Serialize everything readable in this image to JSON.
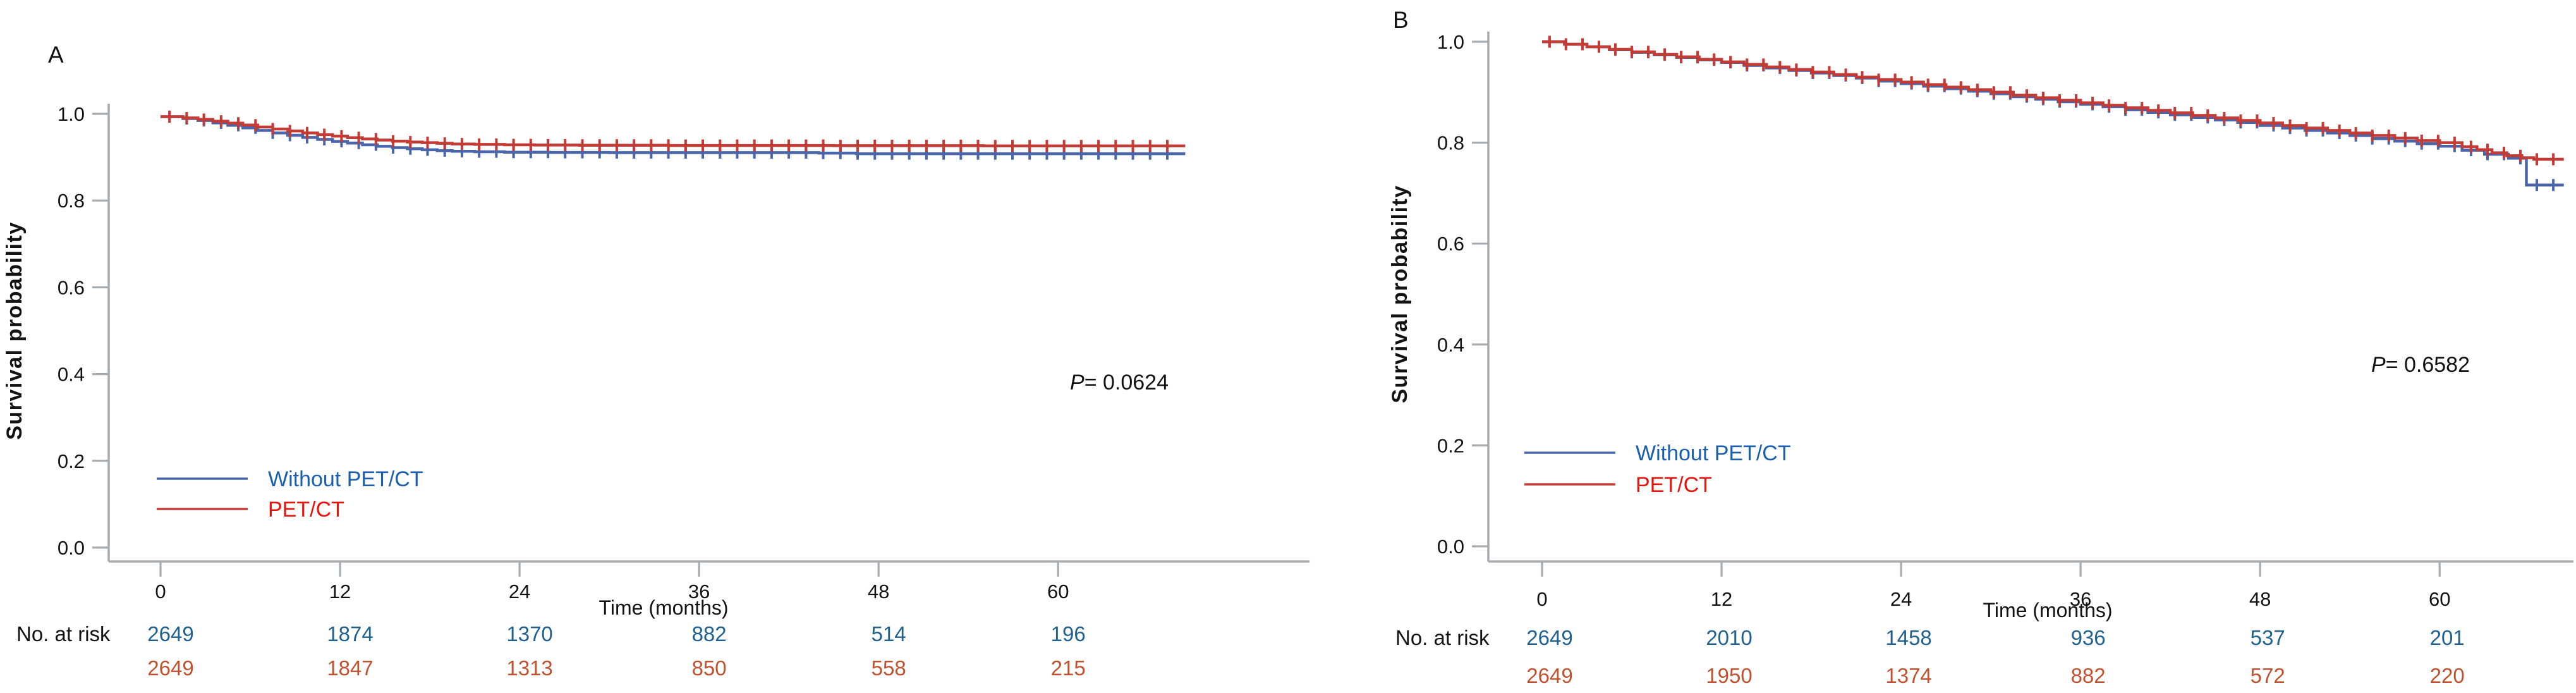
{
  "figure": {
    "background": "#ffffff",
    "axis_color": "#a6acb0",
    "tick_label_color": "#121212",
    "risk_header_color": "#121212"
  },
  "chart_data": [
    {
      "type": "line",
      "subtype": "kaplan-meier-step",
      "panel": "A",
      "title": "A",
      "xlabel": "Time (months)",
      "ylabel": "Survival probability",
      "xlim": [
        0,
        70
      ],
      "ylim": [
        0.0,
        1.0
      ],
      "xticks": [
        0,
        12,
        24,
        36,
        48,
        60
      ],
      "yticks": [
        1.0,
        0.8,
        0.6,
        0.4,
        0.2,
        0.0
      ],
      "ytick_labels": [
        "1.0",
        "0.8",
        "0.6",
        "0.4",
        "0.2",
        "0.0"
      ],
      "grid": false,
      "legend_position": "bottom-left",
      "pvalue": {
        "symbol": "P",
        "rest": "= 0.0624"
      },
      "risk_label": "No. at risk",
      "censor_interval": 1.15,
      "censor_start": 0.6,
      "series": [
        {
          "name": "Without PET/CT",
          "color": "#4a66aa",
          "label_color": "#1a5fae",
          "risk_color": "#20618f",
          "risk_counts": [
            "2649",
            "1874",
            "1370",
            "882",
            "514",
            "196"
          ],
          "points": [
            [
              0,
              0.9935
            ],
            [
              1.5,
              0.989
            ],
            [
              2.5,
              0.9845
            ],
            [
              3.5,
              0.979
            ],
            [
              4.5,
              0.9735
            ],
            [
              5.5,
              0.9675
            ],
            [
              6.5,
              0.9615
            ],
            [
              7.5,
              0.956
            ],
            [
              8.5,
              0.9505
            ],
            [
              9.5,
              0.9455
            ],
            [
              10.5,
              0.941
            ],
            [
              11.5,
              0.9365
            ],
            [
              12.5,
              0.9325
            ],
            [
              13.5,
              0.9285
            ],
            [
              14.5,
              0.925
            ],
            [
              15.5,
              0.922
            ],
            [
              16.5,
              0.9195
            ],
            [
              17.5,
              0.917
            ],
            [
              18.5,
              0.915
            ],
            [
              19.5,
              0.9135
            ],
            [
              21,
              0.9125
            ],
            [
              23,
              0.9115
            ],
            [
              26,
              0.911
            ],
            [
              30,
              0.9105
            ],
            [
              44,
              0.9095
            ],
            [
              46.5,
              0.908
            ],
            [
              68.5,
              0.908
            ]
          ]
        },
        {
          "name": "PET/CT",
          "color": "#c23b35",
          "label_color": "#e8130c",
          "risk_color": "#c2512e",
          "risk_counts": [
            "2649",
            "1847",
            "1313",
            "850",
            "558",
            "215"
          ],
          "points": [
            [
              0,
              0.9935
            ],
            [
              1.5,
              0.9905
            ],
            [
              2.5,
              0.987
            ],
            [
              3.5,
              0.983
            ],
            [
              4.5,
              0.9785
            ],
            [
              5.5,
              0.974
            ],
            [
              6.5,
              0.9695
            ],
            [
              7.5,
              0.965
            ],
            [
              8.5,
              0.9605
            ],
            [
              9.5,
              0.956
            ],
            [
              10.5,
              0.952
            ],
            [
              11.5,
              0.9485
            ],
            [
              12.5,
              0.945
            ],
            [
              13.5,
              0.942
            ],
            [
              14.5,
              0.9395
            ],
            [
              15.5,
              0.937
            ],
            [
              16.5,
              0.935
            ],
            [
              17.5,
              0.9335
            ],
            [
              18.5,
              0.932
            ],
            [
              19.5,
              0.9305
            ],
            [
              21,
              0.9295
            ],
            [
              23,
              0.9285
            ],
            [
              25,
              0.928
            ],
            [
              28,
              0.9275
            ],
            [
              34,
              0.927
            ],
            [
              45,
              0.9265
            ],
            [
              55,
              0.926
            ],
            [
              68.5,
              0.926
            ]
          ]
        }
      ]
    },
    {
      "type": "line",
      "subtype": "kaplan-meier-step",
      "panel": "B",
      "title": "B",
      "xlabel": "Time (months)",
      "ylabel": "Survival probability",
      "xlim": [
        0,
        70
      ],
      "ylim": [
        0.0,
        1.0
      ],
      "xticks": [
        0,
        12,
        24,
        36,
        48,
        60
      ],
      "yticks": [
        1.0,
        0.8,
        0.6,
        0.4,
        0.2,
        0.0
      ],
      "ytick_labels": [
        "1.0",
        "0.8",
        "0.6",
        "0.4",
        "0.2",
        "0.0"
      ],
      "grid": false,
      "legend_position": "bottom-left",
      "pvalue": {
        "symbol": "P",
        "rest": "= 0.6582"
      },
      "risk_label": "No. at risk",
      "censor_interval": 1.1,
      "censor_start": 0.5,
      "series": [
        {
          "name": "Without PET/CT",
          "color": "#4a66aa",
          "label_color": "#1a5fae",
          "risk_color": "#20618f",
          "risk_counts": [
            "2649",
            "2010",
            "1458",
            "936",
            "537",
            "201"
          ],
          "points": [
            [
              0,
              1.0
            ],
            [
              1.5,
              0.995
            ],
            [
              3,
              0.99
            ],
            [
              4.5,
              0.984
            ],
            [
              6,
              0.979
            ],
            [
              7.5,
              0.974
            ],
            [
              9,
              0.969
            ],
            [
              10.5,
              0.964
            ],
            [
              12,
              0.959
            ],
            [
              13.5,
              0.953
            ],
            [
              15,
              0.948
            ],
            [
              16.5,
              0.943
            ],
            [
              18,
              0.938
            ],
            [
              19.5,
              0.933
            ],
            [
              21,
              0.928
            ],
            [
              22.5,
              0.922
            ],
            [
              24,
              0.917
            ],
            [
              25.5,
              0.912
            ],
            [
              27,
              0.907
            ],
            [
              28.5,
              0.902
            ],
            [
              30,
              0.897
            ],
            [
              31.5,
              0.891
            ],
            [
              33,
              0.886
            ],
            [
              34.5,
              0.881
            ],
            [
              36,
              0.876
            ],
            [
              37.5,
              0.871
            ],
            [
              39,
              0.865
            ],
            [
              40.5,
              0.86
            ],
            [
              42,
              0.855
            ],
            [
              43.5,
              0.85
            ],
            [
              45,
              0.845
            ],
            [
              46.5,
              0.84
            ],
            [
              48,
              0.834
            ],
            [
              49.5,
              0.829
            ],
            [
              51,
              0.824
            ],
            [
              52.5,
              0.819
            ],
            [
              54,
              0.814
            ],
            [
              55.5,
              0.808
            ],
            [
              57,
              0.803
            ],
            [
              58.5,
              0.798
            ],
            [
              60,
              0.793
            ],
            [
              61.5,
              0.785
            ],
            [
              63,
              0.777
            ],
            [
              64.6,
              0.769
            ],
            [
              65.8,
              0.716
            ],
            [
              68.3,
              0.716
            ]
          ]
        },
        {
          "name": "PET/CT",
          "color": "#c23b35",
          "label_color": "#e8130c",
          "risk_color": "#c2512e",
          "risk_counts": [
            "2649",
            "1950",
            "1374",
            "882",
            "572",
            "220"
          ],
          "points": [
            [
              0,
              1.0
            ],
            [
              1.5,
              0.995
            ],
            [
              3,
              0.99
            ],
            [
              4.5,
              0.985
            ],
            [
              6,
              0.98
            ],
            [
              7.5,
              0.975
            ],
            [
              9,
              0.97
            ],
            [
              10.5,
              0.965
            ],
            [
              12,
              0.96
            ],
            [
              13.5,
              0.955
            ],
            [
              15,
              0.95
            ],
            [
              16.5,
              0.945
            ],
            [
              18,
              0.94
            ],
            [
              19.5,
              0.935
            ],
            [
              21,
              0.93
            ],
            [
              22.5,
              0.925
            ],
            [
              24,
              0.92
            ],
            [
              25.5,
              0.915
            ],
            [
              27,
              0.91
            ],
            [
              28.5,
              0.905
            ],
            [
              30,
              0.9
            ],
            [
              31.5,
              0.894
            ],
            [
              33,
              0.889
            ],
            [
              34.5,
              0.884
            ],
            [
              36,
              0.879
            ],
            [
              37.5,
              0.874
            ],
            [
              39,
              0.869
            ],
            [
              40.5,
              0.864
            ],
            [
              42,
              0.859
            ],
            [
              43.5,
              0.854
            ],
            [
              45,
              0.849
            ],
            [
              46.5,
              0.844
            ],
            [
              48,
              0.839
            ],
            [
              49.5,
              0.834
            ],
            [
              51,
              0.829
            ],
            [
              52.5,
              0.824
            ],
            [
              54,
              0.819
            ],
            [
              55.5,
              0.814
            ],
            [
              57,
              0.809
            ],
            [
              58.5,
              0.804
            ],
            [
              60,
              0.8
            ],
            [
              61.5,
              0.792
            ],
            [
              62.5,
              0.786
            ],
            [
              63.5,
              0.78
            ],
            [
              64.5,
              0.774
            ],
            [
              65.5,
              0.77
            ],
            [
              66.3,
              0.767
            ],
            [
              68.3,
              0.767
            ]
          ]
        }
      ]
    }
  ]
}
